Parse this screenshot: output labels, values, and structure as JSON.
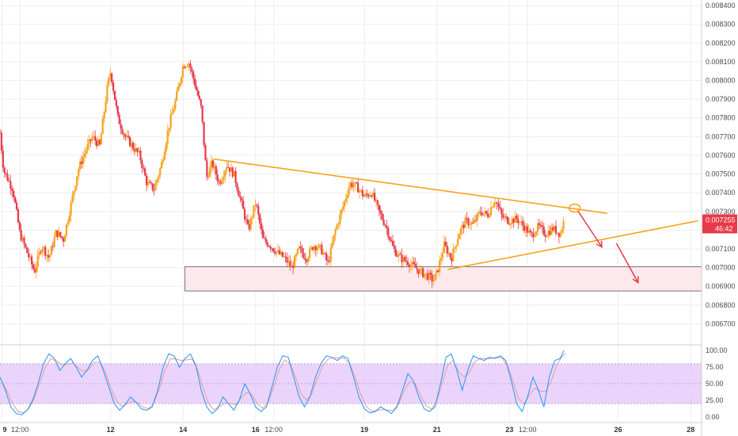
{
  "colors": {
    "bull": "#f7a21b",
    "bear": "#e8394a",
    "trendline": "#f7a21b",
    "zone_fill": "#fde9ec",
    "zone_border": "#555555",
    "arrow": "#e8394a",
    "price_tag": "#e8394a",
    "stoch_band": "#e3c6fb",
    "stoch_k": "#2196f3",
    "stoch_d": "#e89aa0",
    "grid": "#ededed"
  },
  "chart_data": [
    {
      "type": "candlestick",
      "price_axis_ticks": [
        "0.008400",
        "0.008300",
        "0.008200",
        "0.008100",
        "0.008000",
        "0.007900",
        "0.007800",
        "0.007700",
        "0.007600",
        "0.007500",
        "0.007400",
        "0.007300",
        "0.007200",
        "0.007100",
        "0.007000",
        "0.006900",
        "0.006800",
        "0.006700"
      ],
      "ylim": [
        0.0066,
        0.00843
      ],
      "time_axis_labels": [
        {
          "label": "9",
          "day": 9.0,
          "bold": true
        },
        {
          "label": "12:00",
          "day": 9.5,
          "bold": false
        },
        {
          "label": "12",
          "day": 12.0,
          "bold": true
        },
        {
          "label": "14",
          "day": 14.0,
          "bold": true
        },
        {
          "label": "16",
          "day": 16.0,
          "bold": true
        },
        {
          "label": "12:00",
          "day": 16.5,
          "bold": false
        },
        {
          "label": "19",
          "day": 19.0,
          "bold": true
        },
        {
          "label": "21",
          "day": 21.0,
          "bold": true
        },
        {
          "label": "23",
          "day": 23.0,
          "bold": true
        },
        {
          "label": "12:00",
          "day": 23.5,
          "bold": false
        },
        {
          "label": "26",
          "day": 26.0,
          "bold": true
        },
        {
          "label": "28",
          "day": 28.0,
          "bold": true
        }
      ],
      "xlim": [
        8.95,
        28.3
      ],
      "close_path": [
        [
          8.95,
          0.00772
        ],
        [
          9.05,
          0.00752
        ],
        [
          9.3,
          0.00742
        ],
        [
          9.5,
          0.00718
        ],
        [
          9.7,
          0.00708
        ],
        [
          9.9,
          0.00698
        ],
        [
          10.1,
          0.00712
        ],
        [
          10.3,
          0.00705
        ],
        [
          10.5,
          0.00719
        ],
        [
          10.7,
          0.00715
        ],
        [
          10.9,
          0.00733
        ],
        [
          11.1,
          0.00752
        ],
        [
          11.3,
          0.00762
        ],
        [
          11.5,
          0.0077
        ],
        [
          11.7,
          0.00765
        ],
        [
          11.9,
          0.00795
        ],
        [
          12.0,
          0.00805
        ],
        [
          12.2,
          0.0078
        ],
        [
          12.4,
          0.0077
        ],
        [
          12.6,
          0.00765
        ],
        [
          12.8,
          0.0076
        ],
        [
          13.0,
          0.00745
        ],
        [
          13.2,
          0.00742
        ],
        [
          13.4,
          0.00755
        ],
        [
          13.6,
          0.00775
        ],
        [
          13.8,
          0.0079
        ],
        [
          14.0,
          0.00808
        ],
        [
          14.15,
          0.0081
        ],
        [
          14.3,
          0.008
        ],
        [
          14.5,
          0.00785
        ],
        [
          14.65,
          0.00748
        ],
        [
          14.8,
          0.00756
        ],
        [
          15.0,
          0.00745
        ],
        [
          15.2,
          0.00755
        ],
        [
          15.4,
          0.0075
        ],
        [
          15.6,
          0.00735
        ],
        [
          15.8,
          0.0072
        ],
        [
          16.0,
          0.00735
        ],
        [
          16.2,
          0.00715
        ],
        [
          16.4,
          0.00712
        ],
        [
          16.6,
          0.00708
        ],
        [
          16.8,
          0.00705
        ],
        [
          17.0,
          0.007
        ],
        [
          17.2,
          0.0071
        ],
        [
          17.4,
          0.00705
        ],
        [
          17.6,
          0.00712
        ],
        [
          17.8,
          0.0071
        ],
        [
          18.0,
          0.00702
        ],
        [
          18.2,
          0.0072
        ],
        [
          18.4,
          0.00732
        ],
        [
          18.6,
          0.00745
        ],
        [
          18.8,
          0.00743
        ],
        [
          19.0,
          0.00738
        ],
        [
          19.2,
          0.0074
        ],
        [
          19.4,
          0.0073
        ],
        [
          19.6,
          0.00722
        ],
        [
          19.8,
          0.0071
        ],
        [
          20.0,
          0.00705
        ],
        [
          20.2,
          0.00703
        ],
        [
          20.4,
          0.007
        ],
        [
          20.6,
          0.00697
        ],
        [
          20.8,
          0.00695
        ],
        [
          20.9,
          0.00693
        ],
        [
          21.0,
          0.00697
        ],
        [
          21.2,
          0.00712
        ],
        [
          21.4,
          0.00705
        ],
        [
          21.6,
          0.00718
        ],
        [
          21.8,
          0.00725
        ],
        [
          22.0,
          0.00723
        ],
        [
          22.2,
          0.0073
        ],
        [
          22.4,
          0.00728
        ],
        [
          22.6,
          0.00737
        ],
        [
          22.8,
          0.00727
        ],
        [
          23.0,
          0.00725
        ],
        [
          23.2,
          0.00726
        ],
        [
          23.4,
          0.00722
        ],
        [
          23.6,
          0.00717
        ],
        [
          23.8,
          0.00722
        ],
        [
          24.0,
          0.00718
        ],
        [
          24.2,
          0.00721
        ],
        [
          24.4,
          0.00718
        ],
        [
          24.5,
          0.00725
        ]
      ],
      "current_price": "0.007255",
      "countdown": "46:42",
      "trendlines": [
        {
          "from": [
            14.85,
            0.00758
          ],
          "to": [
            25.7,
            0.00729
          ]
        },
        {
          "from": [
            21.3,
            0.00699
          ],
          "to": [
            28.2,
            0.00725
          ]
        }
      ],
      "support_zone": {
        "from_day": 14.05,
        "to_day": 28.3,
        "low": 0.006875,
        "high": 0.007005
      },
      "touch_marker": {
        "day": 24.8,
        "price": 0.007318
      },
      "arrows": [
        {
          "from": [
            24.9,
            0.0073
          ],
          "to": [
            25.55,
            0.00711
          ]
        },
        {
          "from": [
            25.95,
            0.00713
          ],
          "to": [
            26.55,
            0.00692
          ]
        }
      ]
    },
    {
      "type": "line",
      "indicator": "stochastic",
      "axis_ticks": [
        "100.00",
        "75.00",
        "50.00",
        "25.00",
        "0.00"
      ],
      "ylim": [
        -5,
        105
      ],
      "band": [
        20,
        80
      ],
      "k_line": [
        [
          8.95,
          60
        ],
        [
          9.1,
          40
        ],
        [
          9.25,
          15
        ],
        [
          9.4,
          5
        ],
        [
          9.55,
          3
        ],
        [
          9.7,
          10
        ],
        [
          9.85,
          25
        ],
        [
          10.0,
          50
        ],
        [
          10.15,
          80
        ],
        [
          10.3,
          95
        ],
        [
          10.45,
          88
        ],
        [
          10.6,
          70
        ],
        [
          10.75,
          80
        ],
        [
          10.9,
          88
        ],
        [
          11.05,
          75
        ],
        [
          11.2,
          60
        ],
        [
          11.35,
          70
        ],
        [
          11.5,
          85
        ],
        [
          11.65,
          92
        ],
        [
          11.8,
          70
        ],
        [
          11.95,
          45
        ],
        [
          12.1,
          20
        ],
        [
          12.25,
          10
        ],
        [
          12.4,
          18
        ],
        [
          12.55,
          30
        ],
        [
          12.7,
          22
        ],
        [
          12.85,
          12
        ],
        [
          13.0,
          10
        ],
        [
          13.15,
          15
        ],
        [
          13.3,
          40
        ],
        [
          13.45,
          75
        ],
        [
          13.6,
          95
        ],
        [
          13.75,
          92
        ],
        [
          13.9,
          75
        ],
        [
          14.05,
          88
        ],
        [
          14.2,
          95
        ],
        [
          14.35,
          78
        ],
        [
          14.5,
          40
        ],
        [
          14.65,
          15
        ],
        [
          14.8,
          5
        ],
        [
          14.95,
          12
        ],
        [
          15.1,
          30
        ],
        [
          15.25,
          20
        ],
        [
          15.4,
          10
        ],
        [
          15.55,
          25
        ],
        [
          15.7,
          50
        ],
        [
          15.85,
          35
        ],
        [
          16.0,
          15
        ],
        [
          16.15,
          8
        ],
        [
          16.3,
          15
        ],
        [
          16.45,
          45
        ],
        [
          16.6,
          75
        ],
        [
          16.75,
          92
        ],
        [
          16.9,
          90
        ],
        [
          17.05,
          60
        ],
        [
          17.2,
          30
        ],
        [
          17.35,
          15
        ],
        [
          17.5,
          30
        ],
        [
          17.65,
          60
        ],
        [
          17.8,
          80
        ],
        [
          17.95,
          92
        ],
        [
          18.1,
          90
        ],
        [
          18.25,
          85
        ],
        [
          18.4,
          92
        ],
        [
          18.55,
          88
        ],
        [
          18.7,
          60
        ],
        [
          18.85,
          30
        ],
        [
          19.0,
          12
        ],
        [
          19.15,
          6
        ],
        [
          19.3,
          8
        ],
        [
          19.45,
          15
        ],
        [
          19.6,
          10
        ],
        [
          19.75,
          5
        ],
        [
          19.9,
          15
        ],
        [
          20.05,
          40
        ],
        [
          20.2,
          65
        ],
        [
          20.35,
          55
        ],
        [
          20.5,
          30
        ],
        [
          20.65,
          12
        ],
        [
          20.8,
          8
        ],
        [
          20.95,
          15
        ],
        [
          21.1,
          50
        ],
        [
          21.25,
          90
        ],
        [
          21.4,
          95
        ],
        [
          21.55,
          70
        ],
        [
          21.7,
          40
        ],
        [
          21.85,
          70
        ],
        [
          22.0,
          92
        ],
        [
          22.15,
          88
        ],
        [
          22.3,
          85
        ],
        [
          22.45,
          90
        ],
        [
          22.6,
          88
        ],
        [
          22.75,
          92
        ],
        [
          22.9,
          85
        ],
        [
          23.05,
          55
        ],
        [
          23.2,
          20
        ],
        [
          23.35,
          8
        ],
        [
          23.5,
          30
        ],
        [
          23.65,
          60
        ],
        [
          23.8,
          40
        ],
        [
          23.95,
          15
        ],
        [
          24.1,
          60
        ],
        [
          24.25,
          85
        ],
        [
          24.4,
          88
        ],
        [
          24.5,
          100
        ]
      ]
    }
  ]
}
